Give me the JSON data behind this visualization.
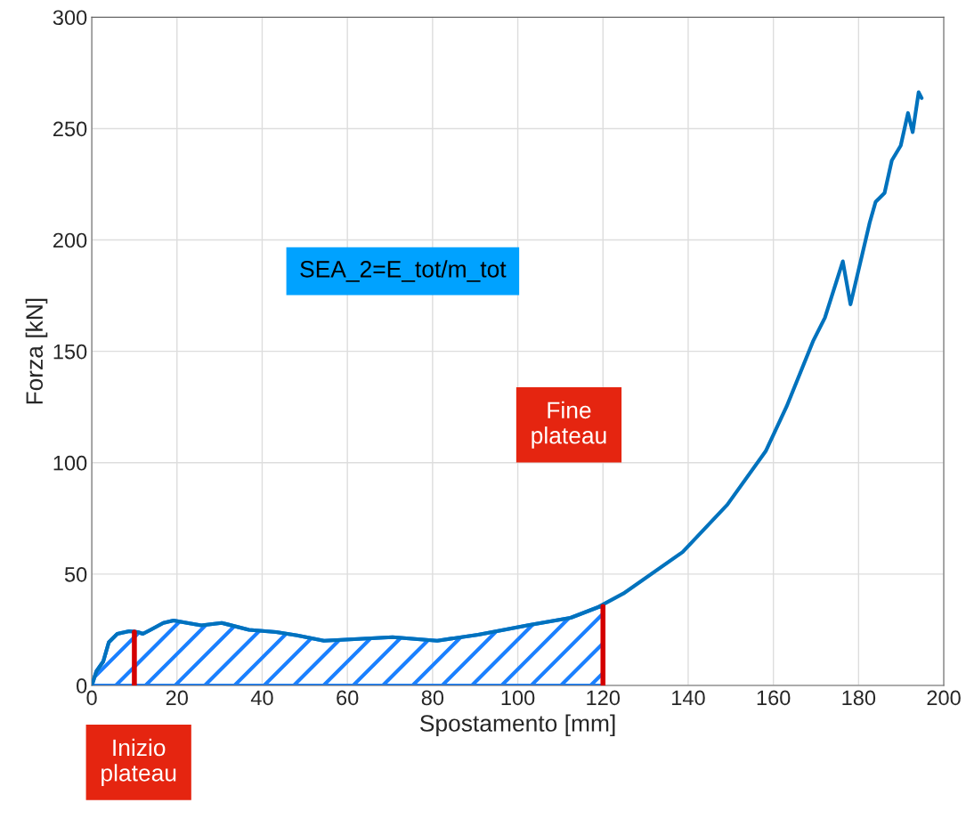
{
  "chart_data": {
    "type": "line",
    "xlabel": "Spostamento [mm]",
    "ylabel": "Forza [kN]",
    "xlim": [
      0,
      200
    ],
    "ylim": [
      0,
      300
    ],
    "xticks": [
      0,
      20,
      40,
      60,
      80,
      100,
      120,
      140,
      160,
      180,
      200
    ],
    "yticks": [
      0,
      50,
      100,
      150,
      200,
      250,
      300
    ],
    "grid": true,
    "series": [
      {
        "type": "area",
        "color": "#1a80ff",
        "x": [
          0,
          1.1,
          2.7,
          4.0,
          6.0,
          8.8,
          10.8,
          12.0,
          14.0,
          16.8,
          19.2,
          22.4,
          25.7,
          30.5,
          36.9,
          43.3,
          48.2,
          54.5,
          62.6,
          70.6,
          81.1,
          90.7,
          102.8,
          112.4,
          118.9,
          120
        ],
        "values": [
          0,
          6.4,
          10.8,
          19.4,
          23.2,
          24.4,
          24.0,
          23.2,
          25.2,
          28.1,
          29.2,
          28.1,
          27.0,
          28.1,
          25.0,
          24.0,
          22.5,
          20.1,
          20.9,
          21.7,
          20.1,
          22.8,
          27.2,
          30.4,
          35.2,
          35.5
        ]
      },
      {
        "color": "#0072bd",
        "x": [
          0,
          1.1,
          2.7,
          4.0,
          6.0,
          8.8,
          10.8,
          12.0,
          14.0,
          16.8,
          19.2,
          22.4,
          25.7,
          30.5,
          36.9,
          43.3,
          48.2,
          54.5,
          62.6,
          70.6,
          81.1,
          90.7,
          102.8,
          112.4,
          118.9,
          124.8,
          138.7,
          149.2,
          158.2,
          163.1,
          169.3,
          172.1,
          176.3,
          178.1,
          182.6,
          184.0,
          186.1,
          187.8,
          189.9,
          191.6,
          192.7,
          194.1,
          194.8
        ],
        "values": [
          0,
          6.4,
          10.8,
          19.4,
          23.2,
          24.4,
          24.0,
          23.2,
          25.2,
          28.1,
          29.2,
          28.1,
          27.0,
          28.1,
          25.0,
          24.0,
          22.5,
          20.1,
          20.9,
          21.7,
          20.1,
          22.8,
          27.2,
          30.4,
          35.2,
          41.3,
          59.9,
          81.2,
          105.2,
          125.2,
          154.5,
          165.1,
          190.4,
          171.1,
          207.7,
          217.1,
          221.1,
          235.7,
          242.4,
          257.0,
          248.4,
          266.3,
          263.7
        ]
      },
      {
        "color": "#d40000",
        "x": [
          10,
          10
        ],
        "values": [
          0,
          24
        ]
      },
      {
        "color": "#d40000",
        "x": [
          120,
          120
        ],
        "values": [
          0,
          35.5
        ]
      }
    ],
    "annotations": [
      "SEA_2=E_tot/m_tot",
      "Fine\nplateau",
      "Inizio\nplateau"
    ]
  }
}
